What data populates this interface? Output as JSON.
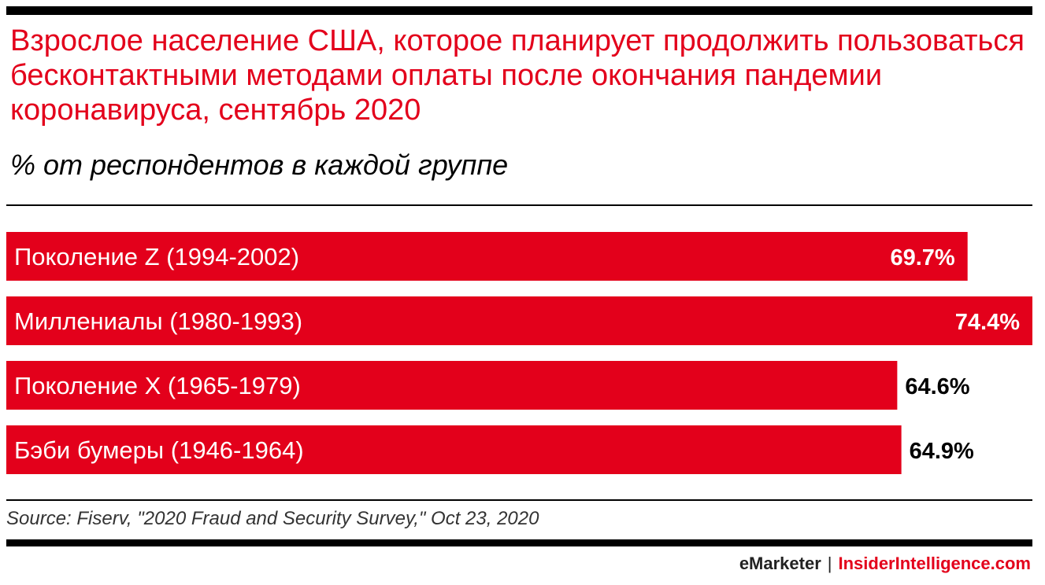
{
  "header": {
    "title": "Взрослое население США, которое планирует продолжить пользоваться бесконтактными методами оплаты после окончания пандемии коронавируса, сентябрь 2020",
    "subtitle": "% от респондентов в каждой группе"
  },
  "chart_data": {
    "type": "bar",
    "orientation": "horizontal",
    "categories": [
      "Поколение Z (1994-2002)",
      "Миллениалы (1980-1993)",
      "Поколение X (1965-1979)",
      "Бэби бумеры (1946-1964)"
    ],
    "values": [
      69.7,
      74.4,
      64.6,
      64.9
    ],
    "value_labels": [
      "69.7%",
      "74.4%",
      "64.6%",
      "64.9%"
    ],
    "xlim": [
      0,
      74.4
    ],
    "grid": false,
    "bar_color": "#e3001b"
  },
  "footer": {
    "source": "Source: Fiserv, \"2020 Fraud and Security Survey,\" Oct 23, 2020",
    "brand": "eMarketer",
    "separator": "|",
    "site": "InsiderIntelligence.com"
  },
  "colors": {
    "accent": "#e3001b",
    "text": "#000000"
  }
}
